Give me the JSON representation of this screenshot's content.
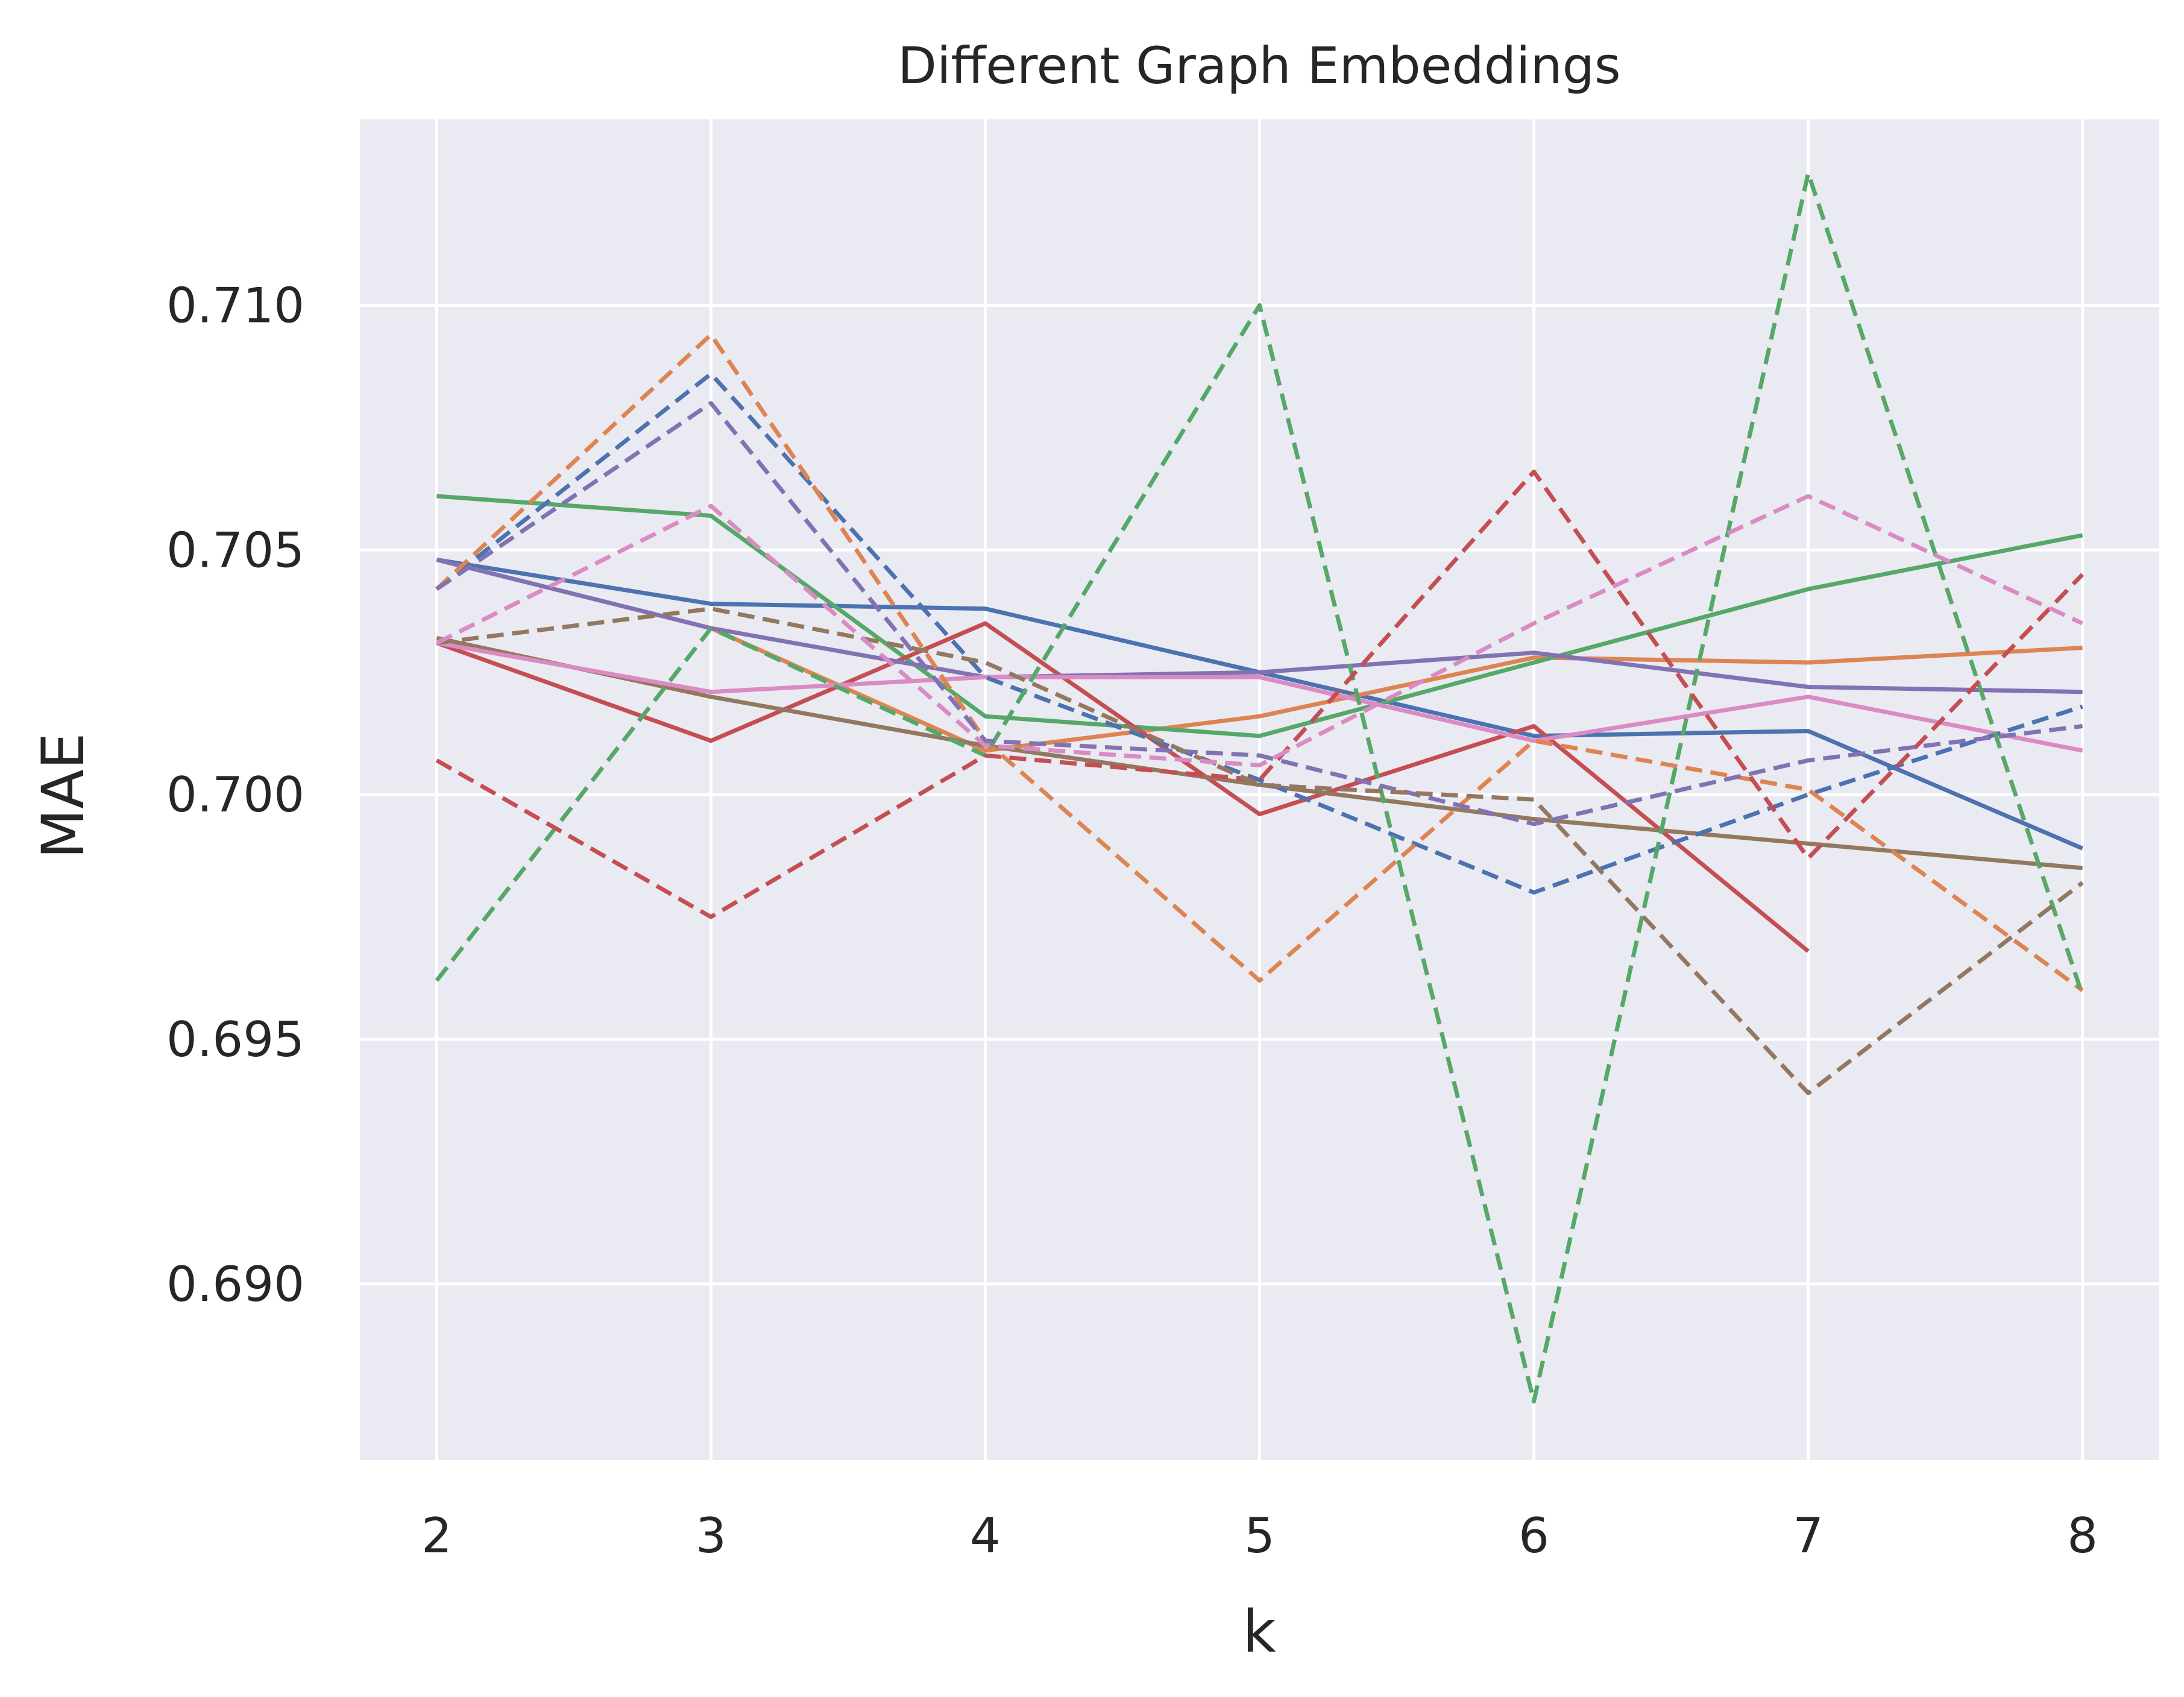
{
  "chart_data": {
    "type": "line",
    "title": "Different Graph Embeddings",
    "xlabel": "k",
    "ylabel": "MAE",
    "x": [
      2,
      3,
      4,
      5,
      6,
      7,
      8
    ],
    "xlim": [
      1.72,
      8.28
    ],
    "ylim": [
      0.6864,
      0.7138
    ],
    "xticks": [
      "2",
      "3",
      "4",
      "5",
      "6",
      "7",
      "8"
    ],
    "yticks": [
      {
        "value": 0.69,
        "label": "0.690"
      },
      {
        "value": 0.695,
        "label": "0.695"
      },
      {
        "value": 0.7,
        "label": "0.700"
      },
      {
        "value": 0.705,
        "label": "0.705"
      },
      {
        "value": 0.71,
        "label": "0.710"
      }
    ],
    "grid": true,
    "background": "#eaeaf2",
    "series": [
      {
        "color": "#4c72b0",
        "style": "solid",
        "values": [
          0.7048,
          0.7039,
          0.7038,
          0.7025,
          0.7012,
          0.7013,
          0.6989
        ]
      },
      {
        "color": "#dd8452",
        "style": "solid",
        "values": [
          0.7048,
          0.7034,
          0.7009,
          0.7016,
          0.7028,
          0.7027,
          0.703
        ]
      },
      {
        "color": "#55a868",
        "style": "solid",
        "values": [
          0.7061,
          0.7057,
          0.7016,
          0.7012,
          0.7027,
          0.7042,
          0.7053
        ]
      },
      {
        "color": "#c44e52",
        "style": "solid",
        "values": [
          0.7031,
          0.7011,
          0.7035,
          0.6996,
          0.7014,
          0.6968,
          null
        ]
      },
      {
        "color": "#8172b3",
        "style": "solid",
        "values": [
          0.7048,
          0.7034,
          0.7024,
          0.7025,
          0.7029,
          0.7022,
          0.7021
        ]
      },
      {
        "color": "#937860",
        "style": "solid",
        "values": [
          0.7032,
          0.702,
          0.701,
          0.7002,
          0.6995,
          0.699,
          0.6985
        ]
      },
      {
        "color": "#da8bc3",
        "style": "solid",
        "values": [
          0.7031,
          0.7021,
          0.7024,
          0.7024,
          0.7011,
          0.702,
          0.7009
        ]
      },
      {
        "color": "#4c72b0",
        "style": "dashed",
        "values": [
          0.7042,
          0.7086,
          0.7024,
          0.7003,
          0.698,
          0.7,
          0.7018
        ]
      },
      {
        "color": "#dd8452",
        "style": "dashed",
        "values": [
          0.7042,
          0.7094,
          0.7011,
          0.6962,
          0.7011,
          0.7001,
          0.696
        ]
      },
      {
        "color": "#55a868",
        "style": "dashed",
        "values": [
          0.6962,
          0.7034,
          0.7008,
          0.71,
          0.6876,
          0.7127,
          0.6959
        ]
      },
      {
        "color": "#c44e52",
        "style": "dashed",
        "values": [
          0.7007,
          0.6975,
          0.7008,
          0.7003,
          0.7066,
          0.6987,
          0.7045
        ]
      },
      {
        "color": "#8172b3",
        "style": "dashed",
        "values": [
          0.7042,
          0.708,
          0.7011,
          0.7008,
          0.6994,
          0.7007,
          0.7014
        ]
      },
      {
        "color": "#937860",
        "style": "dashed",
        "values": [
          0.7031,
          0.7038,
          0.7027,
          0.7002,
          0.6999,
          0.6939,
          0.6982
        ]
      },
      {
        "color": "#da8bc3",
        "style": "dashed",
        "values": [
          0.7031,
          0.7059,
          0.701,
          0.7006,
          0.7035,
          0.7061,
          0.7035
        ]
      }
    ]
  }
}
